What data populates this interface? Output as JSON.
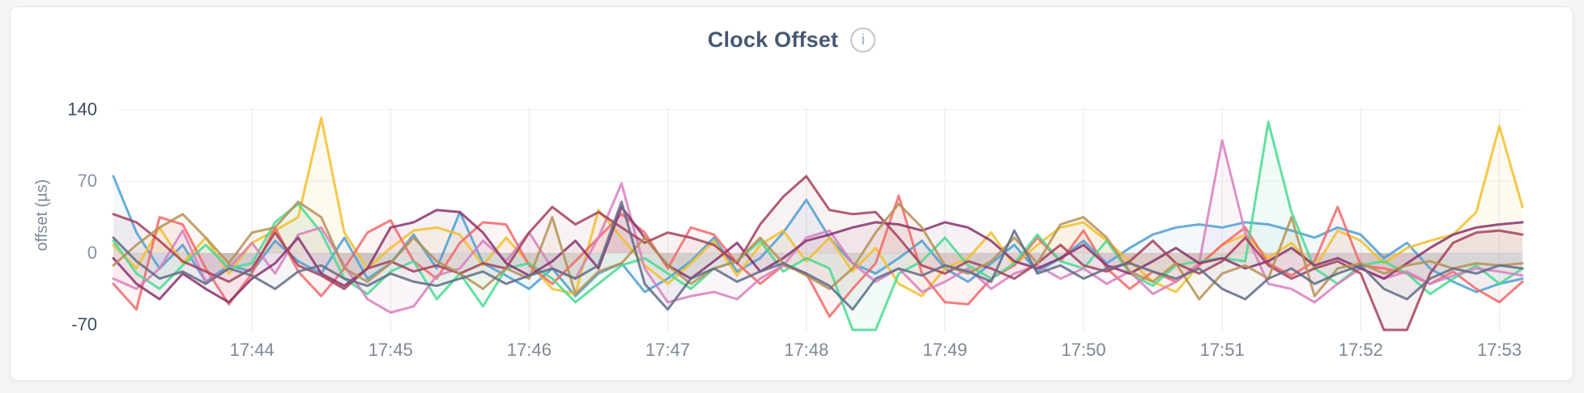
{
  "header": {
    "title": "Clock Offset",
    "info_glyph": "i"
  },
  "chart_data": {
    "type": "line",
    "title": "Clock Offset",
    "xlabel": "",
    "ylabel": "offset (µs)",
    "ylim": [
      -75,
      142
    ],
    "ygrid_values": [
      140,
      70,
      0
    ],
    "yticks": [
      {
        "value": 140,
        "label": "140",
        "strong": true
      },
      {
        "value": 70,
        "label": "70",
        "strong": false
      },
      {
        "value": 0,
        "label": "0",
        "strong": false
      },
      {
        "value": -70,
        "label": "-70",
        "strong": true
      }
    ],
    "x_start": "17:43:00",
    "x_step_seconds": 10,
    "xticks": [
      {
        "label": "17:44",
        "index": 6
      },
      {
        "label": "17:45",
        "index": 12
      },
      {
        "label": "17:46",
        "index": 18
      },
      {
        "label": "17:47",
        "index": 24
      },
      {
        "label": "17:48",
        "index": 30
      },
      {
        "label": "17:49",
        "index": 36
      },
      {
        "label": "17:50",
        "index": 42
      },
      {
        "label": "17:51",
        "index": 48
      },
      {
        "label": "17:52",
        "index": 54
      },
      {
        "label": "17:53",
        "index": 60
      }
    ],
    "legend": "none",
    "grid": "on",
    "series": [
      {
        "name": "series-1-blue",
        "color": "#4E9FD1",
        "values": [
          75,
          20,
          -15,
          8,
          -28,
          -12,
          -18,
          12,
          -8,
          -20,
          15,
          -25,
          -10,
          18,
          -15,
          40,
          -10,
          -22,
          -35,
          -15,
          -42,
          -20,
          -10,
          -38,
          -25,
          -8,
          15,
          -18,
          -5,
          20,
          52,
          15,
          -10,
          -20,
          -5,
          12,
          -15,
          -28,
          -10,
          8,
          -18,
          -5,
          12,
          -10,
          5,
          18,
          25,
          28,
          25,
          30,
          28,
          22,
          15,
          25,
          18,
          -5,
          10,
          -15,
          -28,
          -38,
          -30,
          -25
        ]
      },
      {
        "name": "series-2-yellow",
        "color": "#F2BE2C",
        "values": [
          8,
          -15,
          25,
          -10,
          15,
          -20,
          10,
          22,
          35,
          132,
          20,
          -15,
          5,
          22,
          25,
          18,
          -12,
          15,
          -10,
          -35,
          -40,
          42,
          15,
          -12,
          -30,
          -10,
          12,
          -22,
          8,
          22,
          -8,
          15,
          -18,
          5,
          -30,
          -42,
          -15,
          -5,
          20,
          -12,
          8,
          25,
          30,
          12,
          -8,
          -28,
          -38,
          -12,
          8,
          18,
          -5,
          10,
          -15,
          22,
          12,
          -10,
          5,
          12,
          18,
          40,
          124,
          45
        ]
      },
      {
        "name": "series-3-red",
        "color": "#F16969",
        "values": [
          -30,
          -55,
          35,
          28,
          -15,
          -50,
          -20,
          25,
          -18,
          -42,
          -15,
          20,
          32,
          -8,
          -25,
          10,
          30,
          28,
          -12,
          -30,
          -8,
          15,
          38,
          20,
          -15,
          25,
          18,
          -10,
          -30,
          -12,
          -20,
          -62,
          -35,
          -10,
          56,
          -20,
          -48,
          -50,
          -25,
          -12,
          15,
          -8,
          22,
          -15,
          -35,
          -18,
          -28,
          -12,
          8,
          25,
          -10,
          -22,
          -8,
          45,
          -12,
          -15,
          -20,
          -30,
          -18,
          -35,
          -48,
          -28
        ]
      },
      {
        "name": "series-4-green",
        "color": "#49D990",
        "values": [
          12,
          -20,
          -35,
          -12,
          8,
          -15,
          -10,
          30,
          48,
          20,
          -25,
          -40,
          -18,
          -8,
          -45,
          -20,
          -52,
          -15,
          -10,
          -25,
          -48,
          -30,
          -12,
          -5,
          -20,
          -35,
          -15,
          -8,
          12,
          -18,
          -5,
          -15,
          -75,
          -78,
          -20,
          -8,
          15,
          -12,
          -25,
          -10,
          18,
          -8,
          -15,
          12,
          -20,
          -32,
          -12,
          -8,
          -5,
          -8,
          128,
          40,
          -15,
          -30,
          -12,
          -8,
          -20,
          -40,
          -25,
          -12,
          -30,
          -15
        ]
      },
      {
        "name": "series-5-orchid",
        "color": "#D77FBF",
        "values": [
          -25,
          -35,
          -15,
          22,
          -28,
          -15,
          10,
          -20,
          18,
          25,
          -12,
          -45,
          -58,
          -52,
          -22,
          -15,
          12,
          -8,
          20,
          -15,
          -25,
          15,
          68,
          -15,
          -48,
          -42,
          -38,
          -45,
          -25,
          -12,
          15,
          22,
          -10,
          -28,
          -15,
          -38,
          -28,
          -15,
          -35,
          -20,
          -12,
          -25,
          -15,
          -30,
          -18,
          -40,
          -28,
          -10,
          110,
          20,
          -30,
          -35,
          -48,
          -30,
          -15,
          -25,
          -18,
          -30,
          -22,
          -15,
          -18,
          -22
        ]
      },
      {
        "name": "series-6-purple",
        "color": "#87326D",
        "values": [
          -5,
          -30,
          -45,
          -20,
          -35,
          -48,
          -25,
          -10,
          15,
          -20,
          -32,
          -15,
          25,
          30,
          42,
          40,
          20,
          -10,
          -22,
          -8,
          12,
          -15,
          45,
          15,
          -12,
          -25,
          -8,
          10,
          -18,
          -5,
          12,
          18,
          25,
          30,
          28,
          22,
          30,
          25,
          12,
          -8,
          -15,
          -5,
          8,
          -12,
          -20,
          -8,
          5,
          -10,
          -5,
          -15,
          -8,
          5,
          -12,
          -5,
          -15,
          -25,
          -10,
          5,
          18,
          25,
          28,
          30
        ]
      },
      {
        "name": "series-7-maroon",
        "color": "#A3415B",
        "values": [
          38,
          30,
          12,
          -8,
          -18,
          -28,
          -15,
          20,
          -12,
          -22,
          -35,
          -15,
          -8,
          -18,
          -12,
          -20,
          -10,
          -15,
          20,
          45,
          28,
          40,
          25,
          10,
          20,
          15,
          8,
          -10,
          28,
          55,
          75,
          42,
          38,
          40,
          15,
          -12,
          -20,
          -8,
          -15,
          -25,
          -10,
          8,
          -12,
          -18,
          -8,
          12,
          -10,
          -20,
          -8,
          15,
          -12,
          -25,
          -15,
          -8,
          -20,
          -75,
          -85,
          -20,
          10,
          20,
          22,
          18
        ]
      },
      {
        "name": "series-8-gold",
        "color": "#B59153",
        "values": [
          -12,
          8,
          25,
          38,
          15,
          -10,
          20,
          25,
          50,
          35,
          -15,
          -28,
          -10,
          15,
          -8,
          -20,
          -35,
          -15,
          -25,
          35,
          -40,
          -18,
          -10,
          15,
          -12,
          -30,
          -15,
          -8,
          15,
          -10,
          -22,
          -35,
          -15,
          20,
          48,
          25,
          -12,
          -20,
          -8,
          15,
          -10,
          28,
          35,
          15,
          -18,
          -28,
          -10,
          -45,
          -20,
          -12,
          -25,
          35,
          -42,
          -15,
          -10,
          -20,
          -12,
          -8,
          -15,
          -10,
          -12,
          -10
        ]
      },
      {
        "name": "series-9-slate",
        "color": "#5F6C87",
        "values": [
          15,
          -8,
          -25,
          -18,
          -30,
          -15,
          -22,
          -35,
          -18,
          -12,
          -25,
          -32,
          -20,
          -28,
          -32,
          -25,
          -18,
          -30,
          -22,
          -15,
          -25,
          -12,
          50,
          -30,
          -55,
          -25,
          -15,
          -28,
          -18,
          -10,
          -20,
          -32,
          -55,
          -25,
          -15,
          -22,
          -12,
          -18,
          -28,
          22,
          -20,
          -12,
          -25,
          -15,
          -10,
          -18,
          -25,
          -15,
          -35,
          -45,
          -25,
          -15,
          -30,
          -20,
          -12,
          -35,
          -45,
          -25,
          -15,
          -20,
          -12,
          -15
        ]
      }
    ],
    "style": {
      "line_width": 3,
      "line_opacity": 0.85,
      "area_fill_opacity": 0.07,
      "vgrid_color": "#e8e9eb",
      "hgrid_color": "#ececee",
      "xtick_color": "#7d8797",
      "ytick_strong_color": "#3e4c66",
      "ytick_soft_color": "#8a93a4",
      "title_color": "#475872"
    }
  }
}
